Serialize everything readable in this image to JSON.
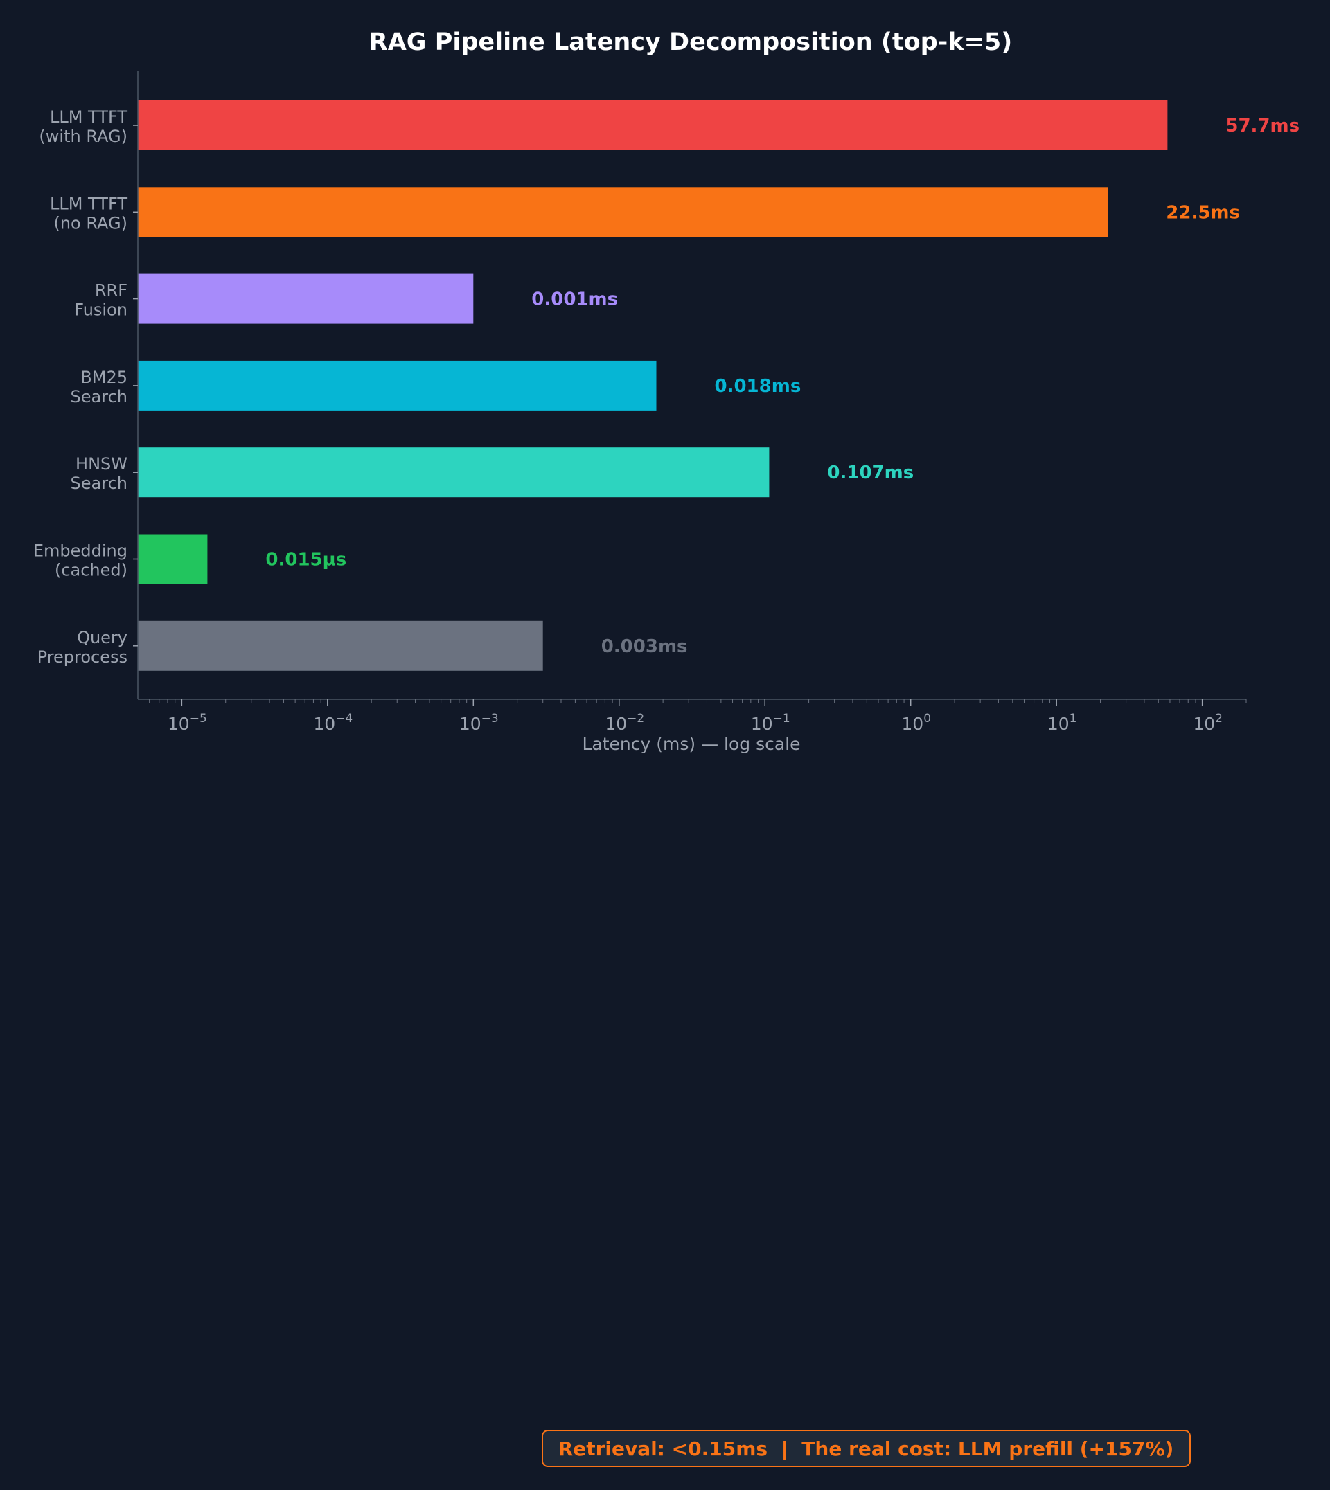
{
  "chart_data": {
    "type": "bar",
    "orientation": "horizontal",
    "title": "RAG Pipeline Latency Decomposition (top-k=5)",
    "xlabel": "Latency (ms) — log scale",
    "xscale": "log",
    "xlim": [
      5e-06,
      200
    ],
    "grid": false,
    "bars": [
      {
        "label": [
          "LLM TTFT",
          "(with RAG)"
        ],
        "value": 57.7,
        "value_label": "57.7ms",
        "color": "#ef4444"
      },
      {
        "label": [
          "LLM TTFT",
          "(no RAG)"
        ],
        "value": 22.5,
        "value_label": "22.5ms",
        "color": "#f97316"
      },
      {
        "label": [
          "RRF",
          "Fusion"
        ],
        "value": 0.001,
        "value_label": "0.001ms",
        "color": "#a78bfa"
      },
      {
        "label": [
          "BM25",
          "Search"
        ],
        "value": 0.018,
        "value_label": "0.018ms",
        "color": "#06b6d4"
      },
      {
        "label": [
          "HNSW",
          "Search"
        ],
        "value": 0.107,
        "value_label": "0.107ms",
        "color": "#2dd4bf"
      },
      {
        "label": [
          "Embedding",
          "(cached)"
        ],
        "value": 1.5e-05,
        "value_label": "0.015µs",
        "color": "#22c55e"
      },
      {
        "label": [
          "Query",
          "Preprocess"
        ],
        "value": 0.003,
        "value_label": "0.003ms",
        "color": "#6b7280"
      }
    ],
    "ticks": [
      {
        "value": 1e-05,
        "base": "10",
        "exp": "−5"
      },
      {
        "value": 0.0001,
        "base": "10",
        "exp": "−4"
      },
      {
        "value": 0.001,
        "base": "10",
        "exp": "−3"
      },
      {
        "value": 0.01,
        "base": "10",
        "exp": "−2"
      },
      {
        "value": 0.1,
        "base": "10",
        "exp": "−1"
      },
      {
        "value": 1,
        "base": "10",
        "exp": "0"
      },
      {
        "value": 10,
        "base": "10",
        "exp": "1"
      },
      {
        "value": 100,
        "base": "10",
        "exp": "2"
      }
    ]
  },
  "footer": "Retrieval: <0.15ms  |  The real cost: LLM prefill (+157%)"
}
